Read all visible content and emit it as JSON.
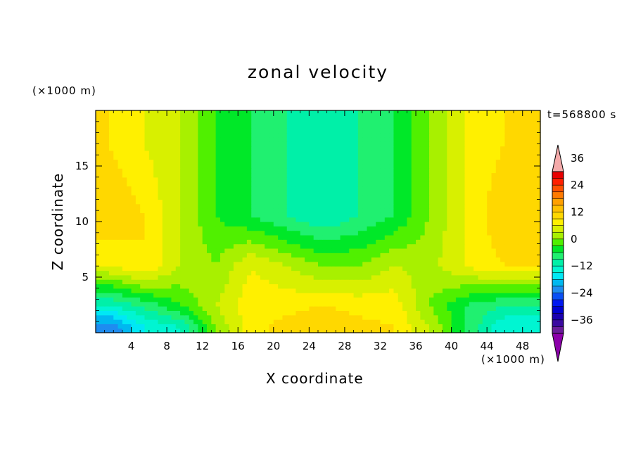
{
  "chart_data": {
    "type": "heatmap",
    "title": "zonal velocity",
    "xlabel": "X coordinate",
    "ylabel": "Z coordinate",
    "x_unit": "(×1000 m)",
    "y_unit": "(×1000 m)",
    "time_label": "t=568800 s",
    "xlim": [
      0,
      50
    ],
    "ylim": [
      0,
      20
    ],
    "xticks": [
      4,
      8,
      12,
      16,
      20,
      24,
      28,
      32,
      36,
      40,
      44,
      48
    ],
    "yticks": [
      5,
      10,
      15
    ],
    "colorbar": {
      "levels": [
        -42,
        -39,
        -36,
        -33,
        -30,
        -27,
        -24,
        -21,
        -18,
        -15,
        -12,
        -9,
        -6,
        -3,
        0,
        3,
        6,
        9,
        12,
        15,
        18,
        21,
        24,
        27,
        30,
        33,
        36,
        39,
        42
      ],
      "tick_values": [
        -36,
        -24,
        -12,
        0,
        12,
        24,
        36
      ],
      "tick_labels": [
        "−36",
        "−24",
        "−12",
        "0",
        "12",
        "24",
        "36"
      ],
      "colors": [
        "#6a1c9a",
        "#3a0aa0",
        "#1a00b0",
        "#0000d0",
        "#0018f0",
        "#0a50f5",
        "#1e8cf0",
        "#00b8f0",
        "#00e8f5",
        "#00f5d2",
        "#00f0a8",
        "#20f070",
        "#00e828",
        "#50f000",
        "#a8f000",
        "#d8f000",
        "#fff000",
        "#ffd800",
        "#ffc000",
        "#ffa000",
        "#ff7a00",
        "#ff5000",
        "#ff2000",
        "#e80000"
      ],
      "under_color": "#8c00aa",
      "over_color": "#f4aaaa"
    },
    "nx": 12,
    "nz": 5,
    "z_grid": [
      0.5,
      2.5,
      6,
      10.5,
      17
    ],
    "x_grid": [
      1.5,
      5.5,
      9.5,
      13.5,
      17.5,
      21.5,
      25.5,
      29.5,
      33.5,
      37.5,
      41.5,
      46
    ],
    "values": [
      [
        -24,
        -15,
        -12,
        0,
        8,
        10,
        12,
        10,
        9,
        3,
        -6,
        -15
      ],
      [
        -12,
        -8,
        -3,
        3,
        8,
        8,
        9,
        8,
        8,
        0,
        -6,
        -9
      ],
      [
        6,
        9,
        3,
        0,
        6,
        3,
        0,
        0,
        3,
        2,
        6,
        9
      ],
      [
        12,
        9,
        3,
        -3,
        -6,
        -9,
        -12,
        -9,
        -6,
        0,
        6,
        12
      ],
      [
        9,
        6,
        3,
        -3,
        -6,
        -9,
        -10,
        -9,
        -6,
        0,
        6,
        9
      ]
    ]
  }
}
